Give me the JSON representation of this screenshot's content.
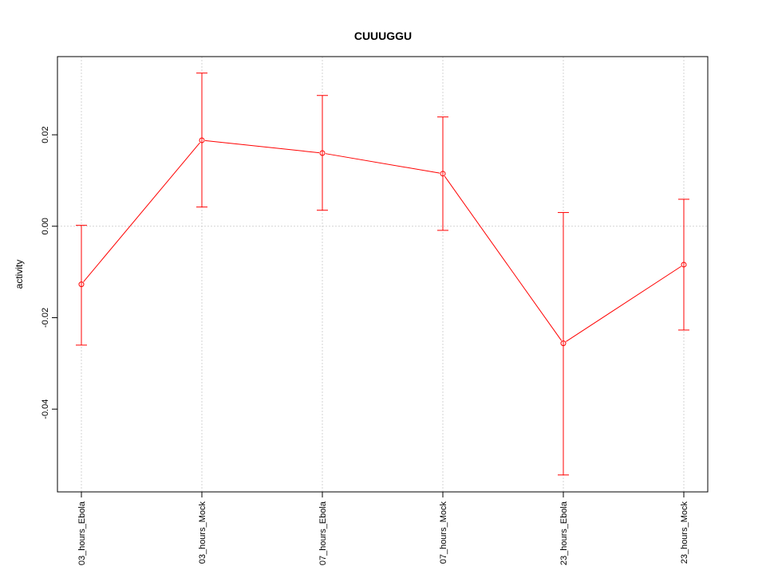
{
  "chart_data": {
    "type": "line",
    "title": "CUUUGGU",
    "xlabel": "",
    "ylabel": "activity",
    "categories": [
      "03_hours_Ebola",
      "03_hours_Mock",
      "07_hours_Ebola",
      "07_hours_Mock",
      "23_hours_Ebola",
      "23_hours_Mock"
    ],
    "values": [
      -0.0127,
      0.0188,
      0.016,
      0.0115,
      -0.0256,
      -0.0084
    ],
    "error_upper": [
      0.0002,
      0.0335,
      0.0286,
      0.0239,
      0.003,
      0.0059
    ],
    "error_lower": [
      -0.026,
      0.0042,
      0.0035,
      -0.0009,
      -0.0544,
      -0.0227
    ],
    "yticks": [
      -0.04,
      -0.02,
      0.0,
      0.02
    ],
    "ytick_labels": [
      "-0.04",
      "-0.02",
      "0.00",
      "0.02"
    ],
    "ylim": [
      -0.0581,
      0.0371
    ],
    "grid": true,
    "series_color": "#ff0000",
    "grid_color": "#d3d3d3"
  }
}
